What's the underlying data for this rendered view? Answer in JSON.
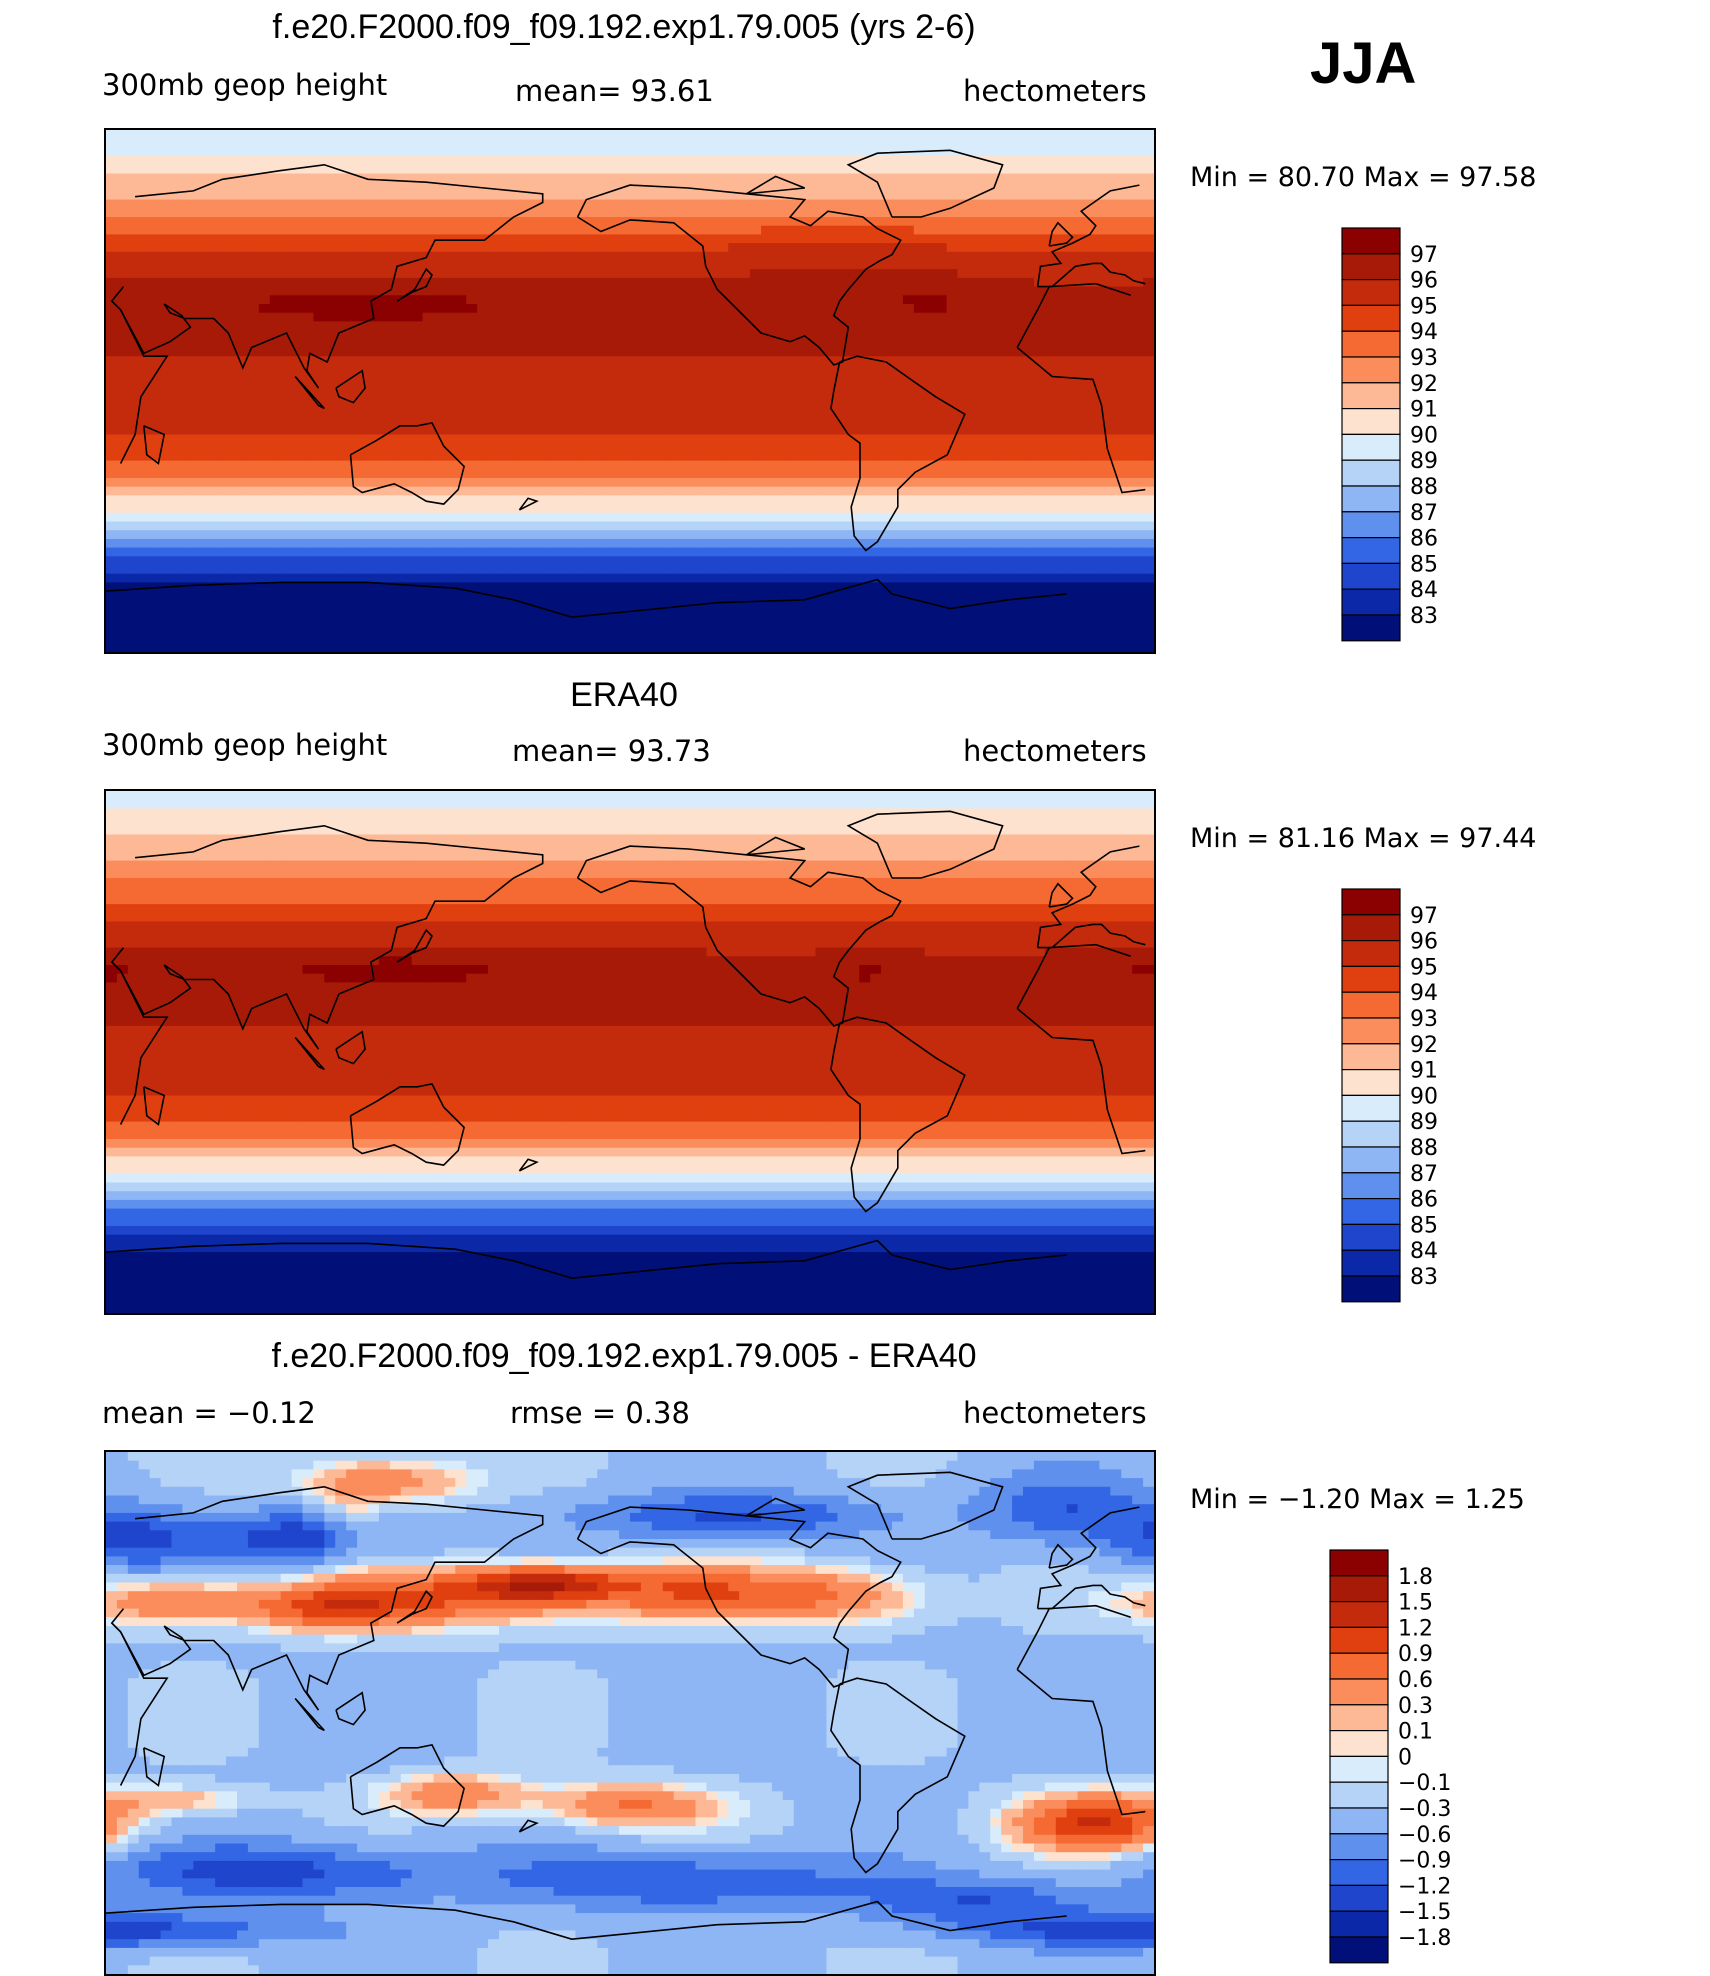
{
  "season": "JJA",
  "panels": [
    {
      "title": "f.e20.F2000.f09_f09.192.exp1.79.005 (yrs 2-6)",
      "left_label": "300mb  geop  height",
      "center_label": "mean=   93.61",
      "units": "hectometers",
      "minmax": "Min  =    80.70  Max  =    97.58"
    },
    {
      "title": "ERA40",
      "left_label": "300mb  geop  height",
      "center_label": "mean=   93.73",
      "units": "hectometers",
      "minmax": "Min  =    81.16  Max  =    97.44"
    },
    {
      "title": "f.e20.F2000.f09_f09.192.exp1.79.005 - ERA40",
      "left_label": "mean  =    −0.12",
      "center_label": "rmse  =     0.38",
      "units": "hectometers",
      "minmax": "Min  =    −1.20  Max  =      1.25"
    }
  ],
  "chart_data": [
    {
      "type": "heatmap",
      "title": "f.e20.F2000.f09_f09.192.exp1.79.005 (yrs 2-6)",
      "variable": "300mb geop height",
      "units": "hectometers",
      "mean": 93.61,
      "min": 80.7,
      "max": 97.58,
      "colorbar_levels": [
        97,
        96,
        95,
        94,
        93,
        92,
        91,
        90,
        89,
        88,
        87,
        86,
        85,
        84,
        83
      ],
      "colorbar_labels": [
        "97",
        "96",
        "95",
        "94",
        "93",
        "92",
        "91",
        "90",
        "89",
        "88",
        "87",
        "86",
        "85",
        "84",
        "83"
      ],
      "colorbar_colors": [
        "#8b0000",
        "#a81a08",
        "#c42a0c",
        "#e0400f",
        "#f56a32",
        "#fb8c5c",
        "#fdb896",
        "#fde3cf",
        "#d9ecfb",
        "#b5d3f7",
        "#8fb6f4",
        "#5f90ee",
        "#3366e4",
        "#1f45cc",
        "#0b28a8",
        "#001078"
      ],
      "lat_profile": [
        {
          "lat": 90,
          "v": 89.0
        },
        {
          "lat": 80,
          "v": 90.3
        },
        {
          "lat": 70,
          "v": 91.6
        },
        {
          "lat": 60,
          "v": 93.0
        },
        {
          "lat": 50,
          "v": 94.6
        },
        {
          "lat": 40,
          "v": 95.8
        },
        {
          "lat": 30,
          "v": 96.5
        },
        {
          "lat": 20,
          "v": 96.2
        },
        {
          "lat": 10,
          "v": 95.9
        },
        {
          "lat": 0,
          "v": 95.7
        },
        {
          "lat": -10,
          "v": 95.5
        },
        {
          "lat": -20,
          "v": 94.5
        },
        {
          "lat": -30,
          "v": 92.8
        },
        {
          "lat": -40,
          "v": 90.2
        },
        {
          "lat": -50,
          "v": 87.2
        },
        {
          "lat": -60,
          "v": 84.3
        },
        {
          "lat": -70,
          "v": 82.4
        },
        {
          "lat": -80,
          "v": 81.5
        },
        {
          "lat": -90,
          "v": 81.0
        }
      ],
      "anomalies": [
        {
          "lon": 90,
          "lat": 30,
          "dv": 0.9,
          "rlon": 55,
          "rlat": 9
        },
        {
          "lon": 282,
          "lat": 32,
          "dv": 0.8,
          "rlon": 14,
          "rlat": 7
        },
        {
          "lon": 250,
          "lat": 48,
          "dv": 0.7,
          "rlon": 45,
          "rlat": 10
        }
      ]
    },
    {
      "type": "heatmap",
      "title": "ERA40",
      "variable": "300mb geop height",
      "units": "hectometers",
      "mean": 93.73,
      "min": 81.16,
      "max": 97.44,
      "colorbar_levels": [
        97,
        96,
        95,
        94,
        93,
        92,
        91,
        90,
        89,
        88,
        87,
        86,
        85,
        84,
        83
      ],
      "colorbar_labels": [
        "97",
        "96",
        "95",
        "94",
        "93",
        "92",
        "91",
        "90",
        "89",
        "88",
        "87",
        "86",
        "85",
        "84",
        "83"
      ],
      "colorbar_colors": [
        "#8b0000",
        "#a81a08",
        "#c42a0c",
        "#e0400f",
        "#f56a32",
        "#fb8c5c",
        "#fdb896",
        "#fde3cf",
        "#d9ecfb",
        "#b5d3f7",
        "#8fb6f4",
        "#5f90ee",
        "#3366e4",
        "#1f45cc",
        "#0b28a8",
        "#001078"
      ],
      "lat_profile": [
        {
          "lat": 90,
          "v": 89.3
        },
        {
          "lat": 80,
          "v": 90.5
        },
        {
          "lat": 70,
          "v": 91.6
        },
        {
          "lat": 60,
          "v": 92.8
        },
        {
          "lat": 50,
          "v": 94.2
        },
        {
          "lat": 40,
          "v": 95.5
        },
        {
          "lat": 30,
          "v": 96.4
        },
        {
          "lat": 20,
          "v": 96.3
        },
        {
          "lat": 10,
          "v": 96.0
        },
        {
          "lat": 0,
          "v": 95.8
        },
        {
          "lat": -10,
          "v": 95.6
        },
        {
          "lat": -20,
          "v": 94.6
        },
        {
          "lat": -30,
          "v": 92.9
        },
        {
          "lat": -40,
          "v": 90.3
        },
        {
          "lat": -50,
          "v": 87.4
        },
        {
          "lat": -60,
          "v": 84.6
        },
        {
          "lat": -70,
          "v": 82.6
        },
        {
          "lat": -80,
          "v": 81.8
        },
        {
          "lat": -90,
          "v": 81.2
        }
      ],
      "anomalies": [
        {
          "lon": 100,
          "lat": 28,
          "dv": 0.9,
          "rlon": 50,
          "rlat": 8
        },
        {
          "lon": 262,
          "lat": 28,
          "dv": 0.8,
          "rlon": 10,
          "rlat": 6
        },
        {
          "lon": 0,
          "lat": 28,
          "dv": 0.7,
          "rlon": 18,
          "rlat": 8
        }
      ]
    },
    {
      "type": "heatmap",
      "title": "f.e20.F2000.f09_f09.192.exp1.79.005 - ERA40",
      "units": "hectometers",
      "mean": -0.12,
      "rmse": 0.38,
      "min": -1.2,
      "max": 1.25,
      "colorbar_levels": [
        1.8,
        1.5,
        1.2,
        0.9,
        0.6,
        0.3,
        0.1,
        0,
        -0.1,
        -0.3,
        -0.6,
        -0.9,
        -1.2,
        -1.5,
        -1.8
      ],
      "colorbar_labels": [
        "1.8",
        "1.5",
        "1.2",
        "0.9",
        "0.6",
        "0.3",
        "0.1",
        "0",
        "−0.1",
        "−0.3",
        "−0.6",
        "−0.9",
        "−1.2",
        "−1.5",
        "−1.8"
      ],
      "colorbar_colors": [
        "#8b0000",
        "#a81a08",
        "#c42a0c",
        "#e0400f",
        "#f56a32",
        "#fb8c5c",
        "#fdb896",
        "#fde3cf",
        "#d9ecfb",
        "#b5d3f7",
        "#8fb6f4",
        "#5f90ee",
        "#3366e4",
        "#1f45cc",
        "#0b28a8",
        "#001078"
      ],
      "base": -0.35,
      "features": [
        {
          "lon": 115,
          "lat": 40,
          "dv": 1.2,
          "rlon": 60,
          "rlat": 10
        },
        {
          "lon": 205,
          "lat": 42,
          "dv": 1.0,
          "rlon": 40,
          "rlat": 9
        },
        {
          "lon": 255,
          "lat": 40,
          "dv": 0.8,
          "rlon": 30,
          "rlat": 10
        },
        {
          "lon": 20,
          "lat": 38,
          "dv": 0.9,
          "rlon": 30,
          "rlat": 8
        },
        {
          "lon": 75,
          "lat": 35,
          "dv": 0.8,
          "rlon": 25,
          "rlat": 7
        },
        {
          "lon": 150,
          "lat": 45,
          "dv": 1.3,
          "rlon": 25,
          "rlat": 6
        },
        {
          "lon": 95,
          "lat": 80,
          "dv": 0.9,
          "rlon": 30,
          "rlat": 8
        },
        {
          "lon": 85,
          "lat": 65,
          "dv": 0.6,
          "rlon": 12,
          "rlat": 14
        },
        {
          "lon": 120,
          "lat": -28,
          "dv": 0.9,
          "rlon": 25,
          "rlat": 7
        },
        {
          "lon": 180,
          "lat": -32,
          "dv": 1.0,
          "rlon": 30,
          "rlat": 8
        },
        {
          "lon": 340,
          "lat": -38,
          "dv": 1.5,
          "rlon": 28,
          "rlat": 10
        },
        {
          "lon": 25,
          "lat": -30,
          "dv": 0.6,
          "rlon": 25,
          "rlat": 5
        },
        {
          "lon": 70,
          "lat": 60,
          "dv": -1.2,
          "rlon": 30,
          "rlat": 10
        },
        {
          "lon": 10,
          "lat": 60,
          "dv": -0.9,
          "rlon": 25,
          "rlat": 10
        },
        {
          "lon": 215,
          "lat": 68,
          "dv": -0.9,
          "rlon": 50,
          "rlat": 8
        },
        {
          "lon": 330,
          "lat": 70,
          "dv": -0.8,
          "rlon": 30,
          "rlat": 12
        },
        {
          "lon": 60,
          "lat": -55,
          "dv": -1.0,
          "rlon": 60,
          "rlat": 10
        },
        {
          "lon": 200,
          "lat": -58,
          "dv": -0.9,
          "rlon": 60,
          "rlat": 10
        },
        {
          "lon": 300,
          "lat": -65,
          "dv": -0.8,
          "rlon": 40,
          "rlat": 8
        },
        {
          "lon": 0,
          "lat": -75,
          "dv": -1.1,
          "rlon": 60,
          "rlat": 6
        }
      ]
    }
  ]
}
